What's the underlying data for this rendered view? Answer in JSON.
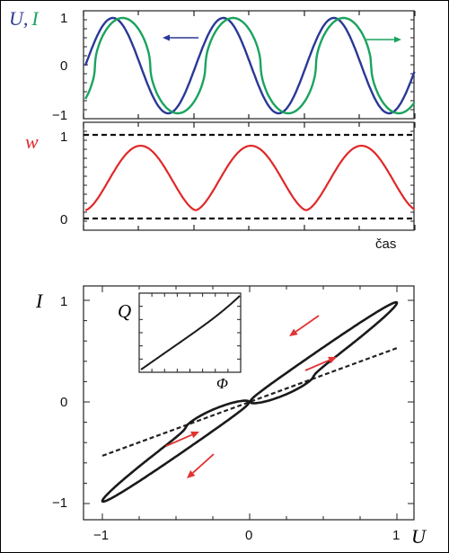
{
  "colors": {
    "voltage": "#2a3896",
    "current": "#1aa35f",
    "energy": "#e02828",
    "loop": "#1a1a1a",
    "arrow_red": "#e23232"
  },
  "chart_data": [
    {
      "type": "line",
      "ylabel_parts": [
        "U,",
        "I"
      ],
      "y_ticks": [
        "1",
        "0",
        "−1"
      ],
      "ylim": [
        -1,
        1
      ],
      "x_range_periods": [
        0,
        3
      ],
      "series": [
        {
          "key": "U",
          "description": "sinusoid, amplitude 1, 3 periods"
        },
        {
          "key": "I",
          "description": "lagging/steepened response, amplitude 1, 3 periods"
        }
      ],
      "annotations": [
        "left-pointing blue arrow",
        "right-pointing green arrow"
      ]
    },
    {
      "type": "line",
      "ylabel": "w",
      "y_ticks": [
        "1",
        "0"
      ],
      "ylim": [
        0,
        1
      ],
      "xlabel": "čas",
      "series": [
        {
          "key": "w",
          "peaks": 0.87,
          "troughs": 0.1,
          "periods": 3
        }
      ],
      "reference_lines": [
        1,
        0
      ]
    },
    {
      "type": "line",
      "xlabel": "U",
      "ylabel": "I",
      "xlim": [
        -1,
        1
      ],
      "ylim": [
        -1,
        1
      ],
      "x_ticks": [
        "−1",
        "0",
        "1"
      ],
      "y_ticks": [
        "1",
        "0",
        "−1"
      ],
      "series": [
        {
          "key": "hysteresis-loop",
          "description": "closed loop through origin"
        },
        {
          "key": "linear-dashed",
          "slope": 0.53
        }
      ],
      "inset": {
        "xlabel": "Φ",
        "ylabel": "Q",
        "type": "line"
      }
    }
  ]
}
